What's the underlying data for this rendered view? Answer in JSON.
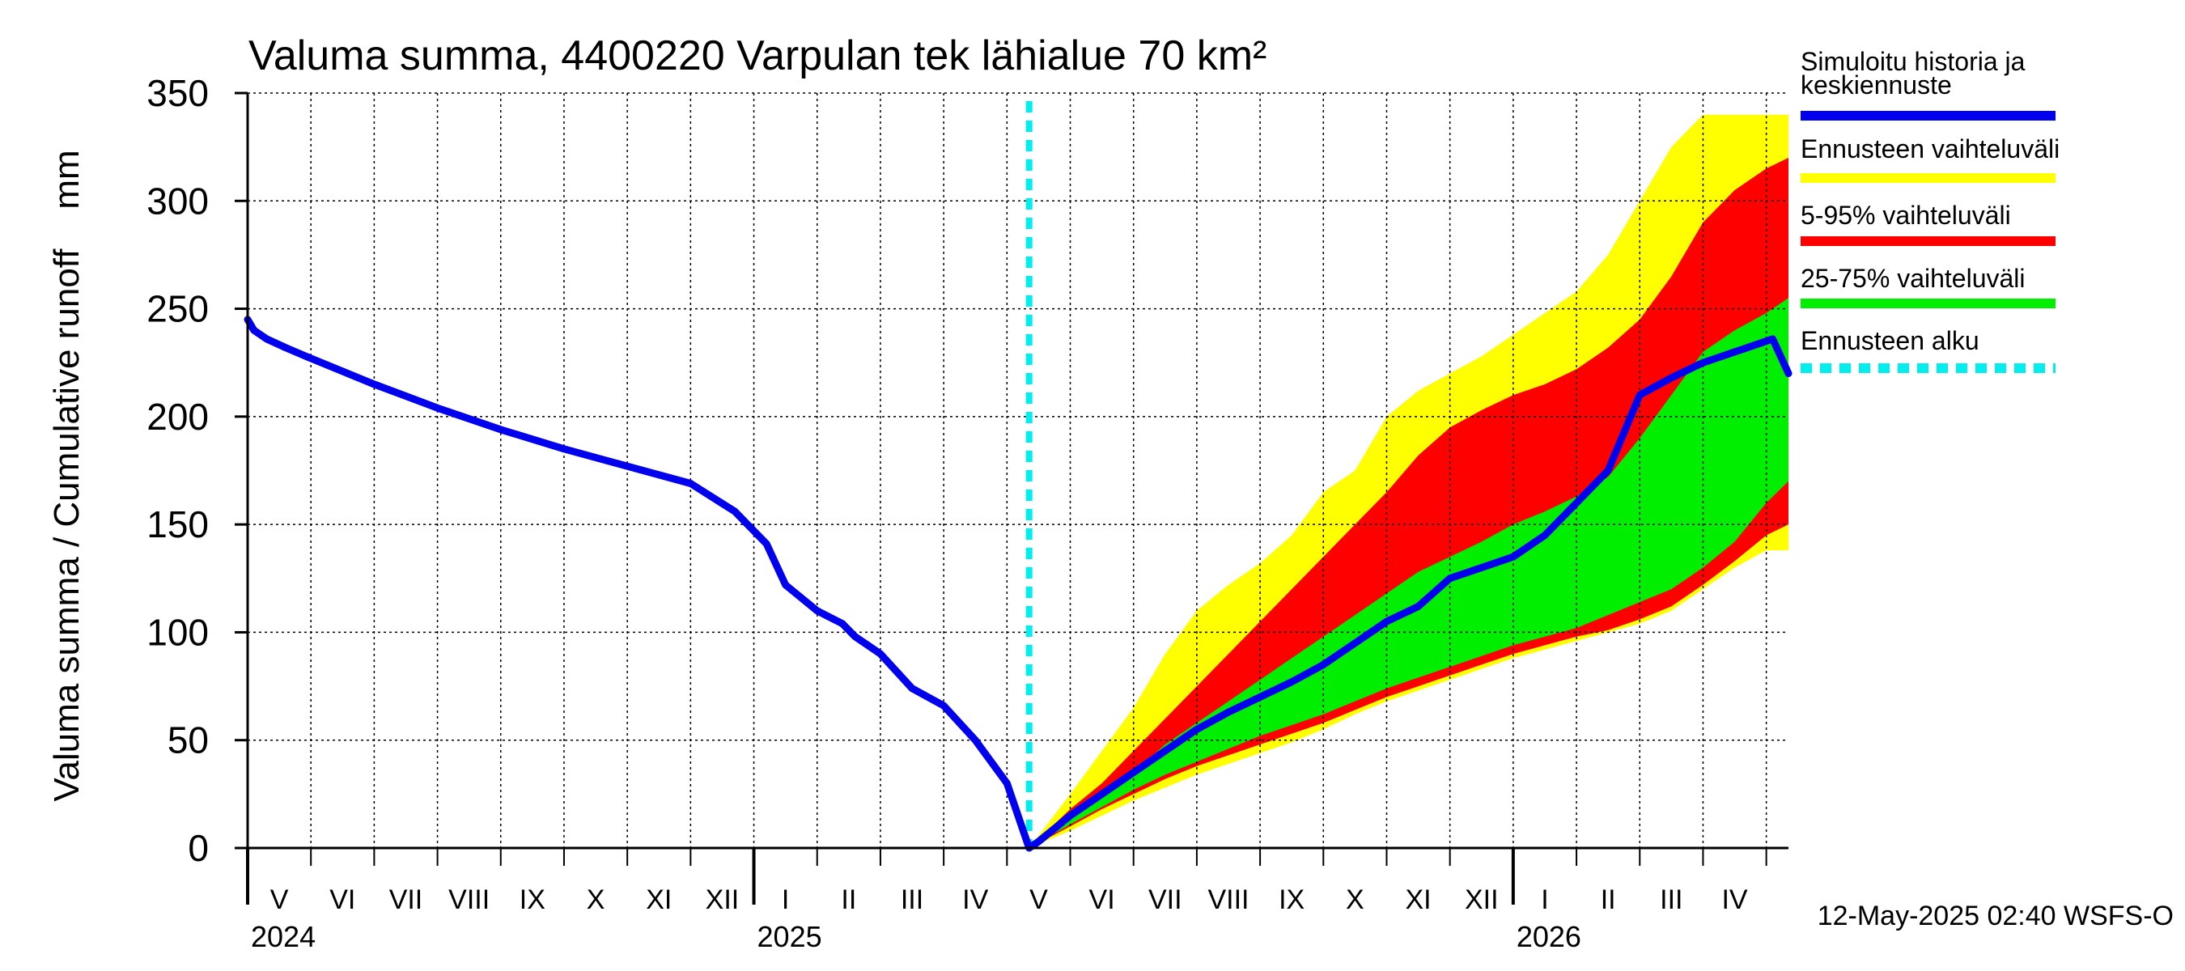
{
  "chart_data": {
    "type": "area",
    "title": "Valuma summa, 4400220 Varpulan tek lähialue 70 km²",
    "ylabel": "Valuma summa / Cumulative runoff    mm",
    "xlabel": "",
    "ylim": [
      0,
      350
    ],
    "yticks": [
      0,
      50,
      100,
      150,
      200,
      250,
      300,
      350
    ],
    "ytick_labels": [
      "0",
      "50",
      "100",
      "150",
      "200",
      "250",
      "300",
      "350"
    ],
    "xlim": [
      0,
      24.35
    ],
    "month_labels": [
      "V",
      "VI",
      "VII",
      "VIII",
      "IX",
      "X",
      "XI",
      "XII",
      "I",
      "II",
      "III",
      "IV",
      "V",
      "VI",
      "VII",
      "VIII",
      "IX",
      "X",
      "XI",
      "XII",
      "I",
      "II",
      "III",
      "IV"
    ],
    "year_labels": [
      {
        "label": "2024",
        "month_index": 0
      },
      {
        "label": "2025",
        "month_index": 8
      },
      {
        "label": "2026",
        "month_index": 20
      }
    ],
    "forecast_start_month": 12.35,
    "footer": "12-May-2025 02:40 WSFS-O",
    "colors": {
      "simulated": "#0000ee",
      "range_total": "#ffff00",
      "range_5_95": "#ff0000",
      "range_25_75": "#00ee00",
      "forecast_start": "#00eeee"
    },
    "legend": [
      {
        "key": "simulated",
        "label": "Simuloitu historia ja keskiennuste",
        "lines": [
          "Simuloitu historia ja",
          "keskiennuste"
        ],
        "style": "solid"
      },
      {
        "key": "range_total",
        "label": "Ennusteen vaihteluväli",
        "lines": [
          "Ennusteen vaihteluväli"
        ],
        "style": "solid"
      },
      {
        "key": "range_5_95",
        "label": "5-95% vaihteluväli",
        "lines": [
          "5-95% vaihteluväli"
        ],
        "style": "solid"
      },
      {
        "key": "range_25_75",
        "label": "25-75% vaihteluväli",
        "lines": [
          "25-75% vaihteluväli"
        ],
        "style": "solid"
      },
      {
        "key": "forecast_start",
        "label": "Ennusteen alku",
        "lines": [
          "Ennusteen alku"
        ],
        "style": "dashed"
      }
    ],
    "series": [
      {
        "name": "Simuloitu historia ja keskiennuste",
        "x": [
          0,
          0.1,
          0.3,
          0.6,
          1,
          2,
          3,
          4,
          5,
          6,
          7,
          7.7,
          7.9,
          8.2,
          8.5,
          9,
          9.4,
          9.6,
          9.8,
          10,
          10.5,
          11,
          11.5,
          12,
          12.35,
          12.5,
          13,
          13.5,
          14,
          14.5,
          15,
          15.5,
          16,
          16.5,
          17,
          17.5,
          18,
          18.5,
          19,
          19.5,
          20,
          20.5,
          21,
          21.5,
          22,
          22.5,
          23,
          23.3,
          23.5,
          23.7,
          23.9,
          24.1,
          24.35
        ],
        "y": [
          245,
          240,
          236,
          232,
          227,
          215,
          204,
          194,
          185,
          177,
          169,
          156,
          150,
          141,
          122,
          110,
          104,
          98,
          94,
          90,
          74,
          66,
          50,
          30,
          0,
          3,
          15,
          25,
          35,
          45,
          55,
          63,
          70,
          77,
          85,
          95,
          105,
          112,
          125,
          130,
          135,
          145,
          160,
          175,
          210,
          218,
          225,
          228,
          230,
          232,
          234,
          236,
          220
        ]
      }
    ],
    "bands": [
      {
        "name": "Ennusteen vaihteluväli",
        "key": "range_total",
        "x": [
          12.35,
          13,
          13.5,
          14,
          14.5,
          15,
          15.5,
          16,
          16.5,
          17,
          17.5,
          18,
          18.5,
          19,
          19.5,
          20,
          20.5,
          21,
          21.5,
          22,
          22.5,
          23,
          23.5,
          24,
          24.35
        ],
        "upper": [
          0,
          25,
          45,
          65,
          90,
          110,
          122,
          132,
          145,
          165,
          175,
          200,
          212,
          220,
          228,
          238,
          248,
          258,
          275,
          300,
          325,
          340,
          340,
          340,
          340
        ],
        "lower": [
          0,
          8,
          15,
          22,
          28,
          34,
          39,
          44,
          49,
          55,
          62,
          68,
          73,
          78,
          83,
          88,
          92,
          96,
          100,
          104,
          110,
          120,
          130,
          138,
          138
        ]
      },
      {
        "name": "5-95% vaihteluväli",
        "key": "range_5_95",
        "x": [
          12.35,
          13,
          13.5,
          14,
          14.5,
          15,
          15.5,
          16,
          16.5,
          17,
          17.5,
          18,
          18.5,
          19,
          19.5,
          20,
          20.5,
          21,
          21.5,
          22,
          22.5,
          23,
          23.5,
          24,
          24.35
        ],
        "upper": [
          0,
          18,
          30,
          45,
          60,
          75,
          90,
          105,
          120,
          135,
          150,
          165,
          182,
          195,
          203,
          210,
          215,
          222,
          232,
          245,
          265,
          290,
          305,
          315,
          320
        ],
        "lower": [
          0,
          10,
          18,
          25,
          32,
          38,
          43,
          48,
          53,
          58,
          64,
          70,
          75,
          80,
          85,
          90,
          94,
          98,
          101,
          106,
          112,
          122,
          133,
          145,
          150
        ]
      },
      {
        "name": "25-75% vaihteluväli",
        "key": "range_25_75",
        "x": [
          12.35,
          13,
          13.5,
          14,
          14.5,
          15,
          15.5,
          16,
          16.5,
          17,
          17.5,
          18,
          18.5,
          19,
          19.5,
          20,
          20.5,
          21,
          21.5,
          22,
          22.5,
          23,
          23.5,
          24,
          24.35
        ],
        "upper": [
          0,
          14,
          24,
          35,
          48,
          58,
          68,
          78,
          88,
          98,
          108,
          118,
          128,
          135,
          142,
          150,
          156,
          163,
          172,
          190,
          210,
          230,
          240,
          248,
          255
        ],
        "lower": [
          0,
          11,
          19,
          27,
          34,
          40,
          46,
          52,
          57,
          62,
          68,
          74,
          79,
          84,
          89,
          94,
          98,
          102,
          108,
          114,
          120,
          130,
          142,
          160,
          170
        ]
      }
    ]
  }
}
